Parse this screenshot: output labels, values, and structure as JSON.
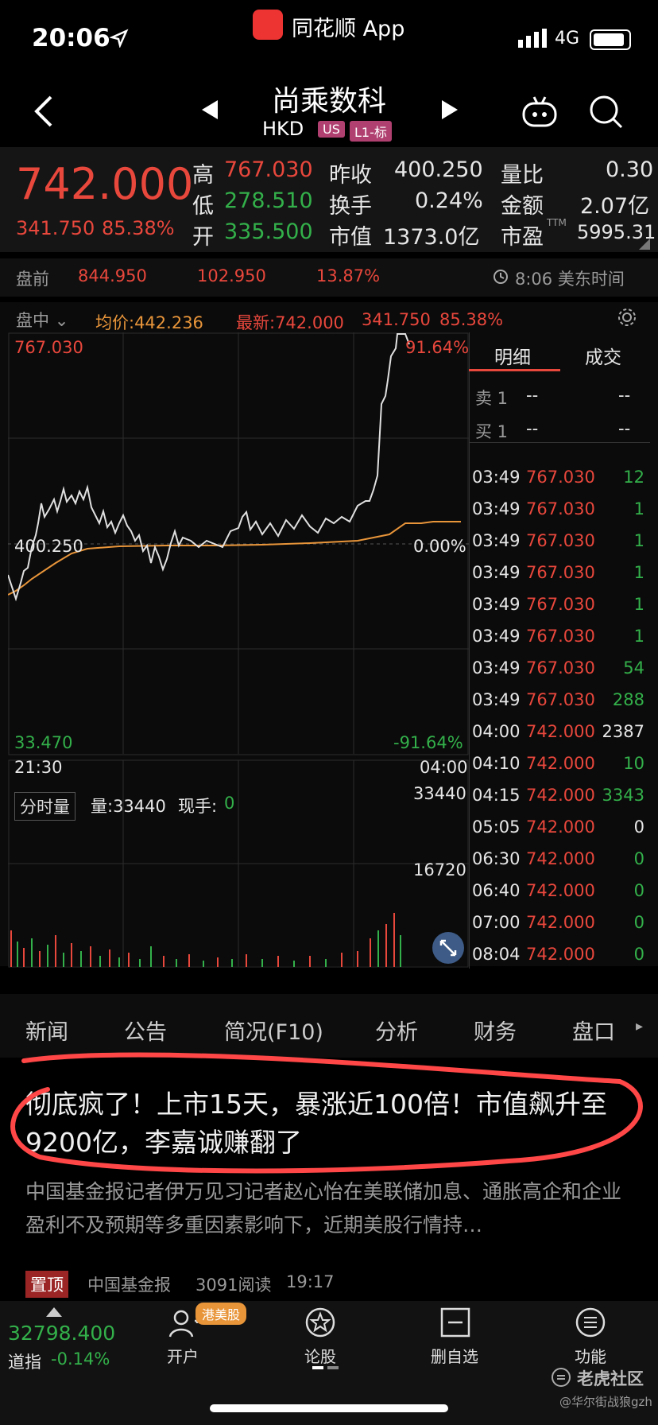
{
  "status": {
    "time": "20:06",
    "app_name": "同花顺 App",
    "network": "4G"
  },
  "nav": {
    "stock_name": "尚乘数科",
    "market": "HKD",
    "tag_us": "US",
    "tag_level": "L1-标"
  },
  "quote": {
    "price": "742.000",
    "change": "341.750",
    "change_pct": "85.38%",
    "high_label": "高",
    "high": "767.030",
    "low_label": "低",
    "low": "278.510",
    "open_label": "开",
    "open": "335.500",
    "prev_close_label": "昨收",
    "prev_close": "400.250",
    "turnover_label": "换手",
    "turnover": "0.24%",
    "mktcap_label": "市值",
    "mktcap": "1373.0亿",
    "vol_ratio_label": "量比",
    "vol_ratio": "0.30",
    "amount_label": "金额",
    "amount": "2.07亿",
    "pe_label": "市盈",
    "pe_sup": "TTM",
    "pe": "5995.31"
  },
  "premarket": {
    "label": "盘前",
    "price": "844.950",
    "change": "102.950",
    "change_pct": "13.87%",
    "time": "8:06 美东时间"
  },
  "chart": {
    "mode": "盘中",
    "avg_label": "均价:442.236",
    "latest_label": "最新:742.000",
    "latest_change": "341.750",
    "latest_pct": "85.38%",
    "y_top": "767.030",
    "y_top_pct": "91.64%",
    "y_mid": "400.250",
    "y_mid_pct": "0.00%",
    "y_bottom": "33.470",
    "y_bottom_pct": "-91.64%",
    "x_start": "21:30",
    "x_end": "04:00",
    "vol_tab": "分时量",
    "vol_label": "量:33440",
    "vol_now_label": "现手:",
    "vol_now": "0",
    "vol_max": "33440",
    "vol_mid": "16720"
  },
  "detail": {
    "tab_detail": "明细",
    "tab_trades": "成交",
    "sell1_label": "卖 1",
    "sell1_price": "--",
    "sell1_vol": "--",
    "buy1_label": "买 1",
    "buy1_price": "--",
    "buy1_vol": "--",
    "trades": [
      {
        "time": "03:49",
        "price": "767.030",
        "vol": "12",
        "color": "green"
      },
      {
        "time": "03:49",
        "price": "767.030",
        "vol": "1",
        "color": "green"
      },
      {
        "time": "03:49",
        "price": "767.030",
        "vol": "1",
        "color": "green"
      },
      {
        "time": "03:49",
        "price": "767.030",
        "vol": "1",
        "color": "green"
      },
      {
        "time": "03:49",
        "price": "767.030",
        "vol": "1",
        "color": "green"
      },
      {
        "time": "03:49",
        "price": "767.030",
        "vol": "1",
        "color": "green"
      },
      {
        "time": "03:49",
        "price": "767.030",
        "vol": "54",
        "color": "green"
      },
      {
        "time": "03:49",
        "price": "767.030",
        "vol": "288",
        "color": "green"
      },
      {
        "time": "04:00",
        "price": "742.000",
        "vol": "2387",
        "color": "white"
      },
      {
        "time": "04:10",
        "price": "742.000",
        "vol": "10",
        "color": "green"
      },
      {
        "time": "04:15",
        "price": "742.000",
        "vol": "3343",
        "color": "green"
      },
      {
        "time": "05:05",
        "price": "742.000",
        "vol": "0",
        "color": "white"
      },
      {
        "time": "06:30",
        "price": "742.000",
        "vol": "0",
        "color": "green"
      },
      {
        "time": "06:40",
        "price": "742.000",
        "vol": "0",
        "color": "green"
      },
      {
        "time": "07:00",
        "price": "742.000",
        "vol": "0",
        "color": "green"
      },
      {
        "time": "08:04",
        "price": "742.000",
        "vol": "0",
        "color": "green"
      }
    ]
  },
  "tabs": [
    "新闻",
    "公告",
    "简况(F10)",
    "分析",
    "财务",
    "盘口"
  ],
  "news": {
    "headline": "彻底疯了！上市15天，暴涨近100倍！市值飙升至9200亿，李嘉诚赚翻了",
    "summary": "中国基金报记者伊万见习记者赵心怡在美联储加息、通胀高企和企业盈利不及预期等多重因素影响下，近期美股行情持…",
    "pin": "置顶",
    "source": "中国基金报",
    "reads": "3091阅读",
    "time": "19:17"
  },
  "bottom": {
    "index_value": "32798.400",
    "index_name": "道指",
    "index_change": "-0.14%",
    "open_badge": "港美股",
    "items": [
      "开户",
      "论股",
      "删自选",
      "功能"
    ]
  },
  "watermark": {
    "brand": "老虎社区",
    "handle": "@华尔街战狼gzh"
  },
  "colors": {
    "up": "#e8473c",
    "down": "#33b04a",
    "avg": "#e8953a",
    "annotation": "#ff3b3b"
  }
}
